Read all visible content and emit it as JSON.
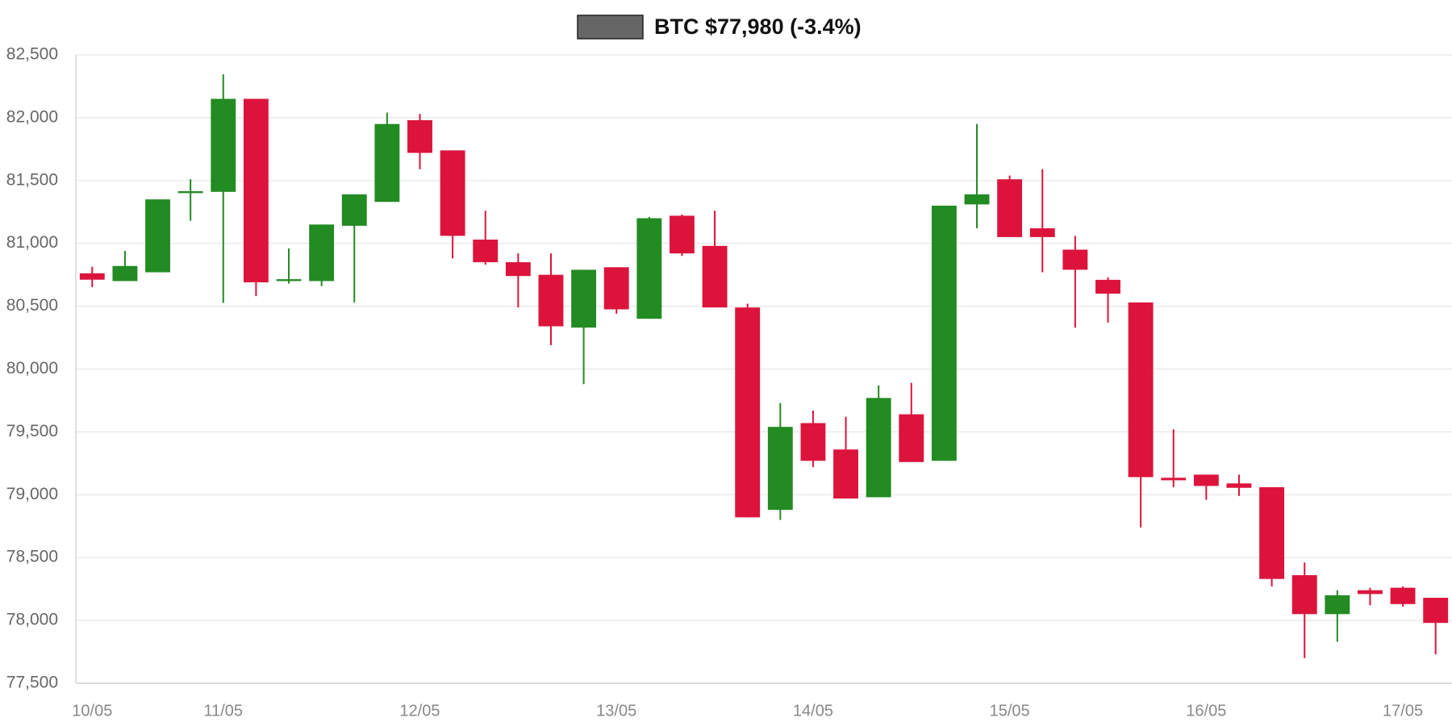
{
  "chart_data": {
    "type": "candlestick",
    "categories": [
      "10/05",
      null,
      null,
      null,
      "11/05",
      null,
      null,
      null,
      null,
      null,
      "12/05",
      null,
      null,
      null,
      null,
      null,
      "13/05",
      null,
      null,
      null,
      null,
      null,
      "14/05",
      null,
      null,
      null,
      null,
      null,
      "15/05",
      null,
      null,
      null,
      null,
      null,
      "16/05",
      null,
      null,
      null,
      null,
      null,
      "17/05",
      null
    ],
    "series": [
      {
        "name": "BTC $77,980 (-3.4%)",
        "color": "#666666",
        "up_color": "#228b22",
        "down_color": "#dc143c",
        "open": [
          80762,
          80700,
          80770,
          81400,
          81410,
          82150,
          80700,
          80700,
          81140,
          81330,
          81980,
          81740,
          81030,
          80850,
          80750,
          80330,
          80810,
          80400,
          81220,
          80980,
          80490,
          78880,
          79570,
          79360,
          78980,
          79640,
          79270,
          81310,
          81510,
          81120,
          80950,
          80710,
          80530,
          79135,
          79160,
          79090,
          79060,
          78360,
          78050,
          78240,
          78260,
          78180
        ],
        "high": [
          80814,
          80940,
          81350,
          81510,
          82345,
          82150,
          80960,
          81150,
          81390,
          82040,
          82030,
          81740,
          81260,
          80920,
          80920,
          80790,
          80810,
          81210,
          81230,
          81260,
          80520,
          79730,
          79670,
          79620,
          79870,
          79890,
          81300,
          81950,
          81540,
          81590,
          81060,
          80730,
          80530,
          79520,
          79160,
          79160,
          79060,
          78460,
          78240,
          78260,
          78270,
          78180
        ],
        "low": [
          80652,
          80700,
          80770,
          81180,
          80526,
          80580,
          80680,
          80660,
          80530,
          81330,
          81590,
          80880,
          80830,
          80490,
          80190,
          79880,
          80440,
          80400,
          80900,
          80490,
          78820,
          78800,
          79220,
          78970,
          78980,
          79260,
          79270,
          81120,
          81050,
          80770,
          80330,
          80370,
          78740,
          79060,
          78960,
          78990,
          78270,
          77700,
          77830,
          78120,
          78110,
          77730
        ],
        "close": [
          80711,
          80820,
          81350,
          81415,
          82150,
          80690,
          80715,
          81150,
          81390,
          81950,
          81720,
          81060,
          80850,
          80740,
          80340,
          80790,
          80475,
          81200,
          80920,
          80490,
          78820,
          79540,
          79270,
          78970,
          79770,
          79260,
          81300,
          81390,
          81050,
          81050,
          80790,
          80600,
          79140,
          79115,
          79070,
          79055,
          78330,
          78050,
          78200,
          78210,
          78130,
          77980
        ]
      }
    ],
    "ylim": [
      77500,
      82500
    ],
    "yticks": [
      {
        "value": 77500,
        "label": "77,500"
      },
      {
        "value": 78000,
        "label": "78,000"
      },
      {
        "value": 78500,
        "label": "78,500"
      },
      {
        "value": 79000,
        "label": "79,000"
      },
      {
        "value": 79500,
        "label": "79,500"
      },
      {
        "value": 80000,
        "label": "80,000"
      },
      {
        "value": 80500,
        "label": "80,500"
      },
      {
        "value": 81000,
        "label": "81,000"
      },
      {
        "value": 81500,
        "label": "81,500"
      },
      {
        "value": 82000,
        "label": "82,000"
      },
      {
        "value": 82500,
        "label": "82,500"
      }
    ],
    "grid": true,
    "legend": "top"
  }
}
